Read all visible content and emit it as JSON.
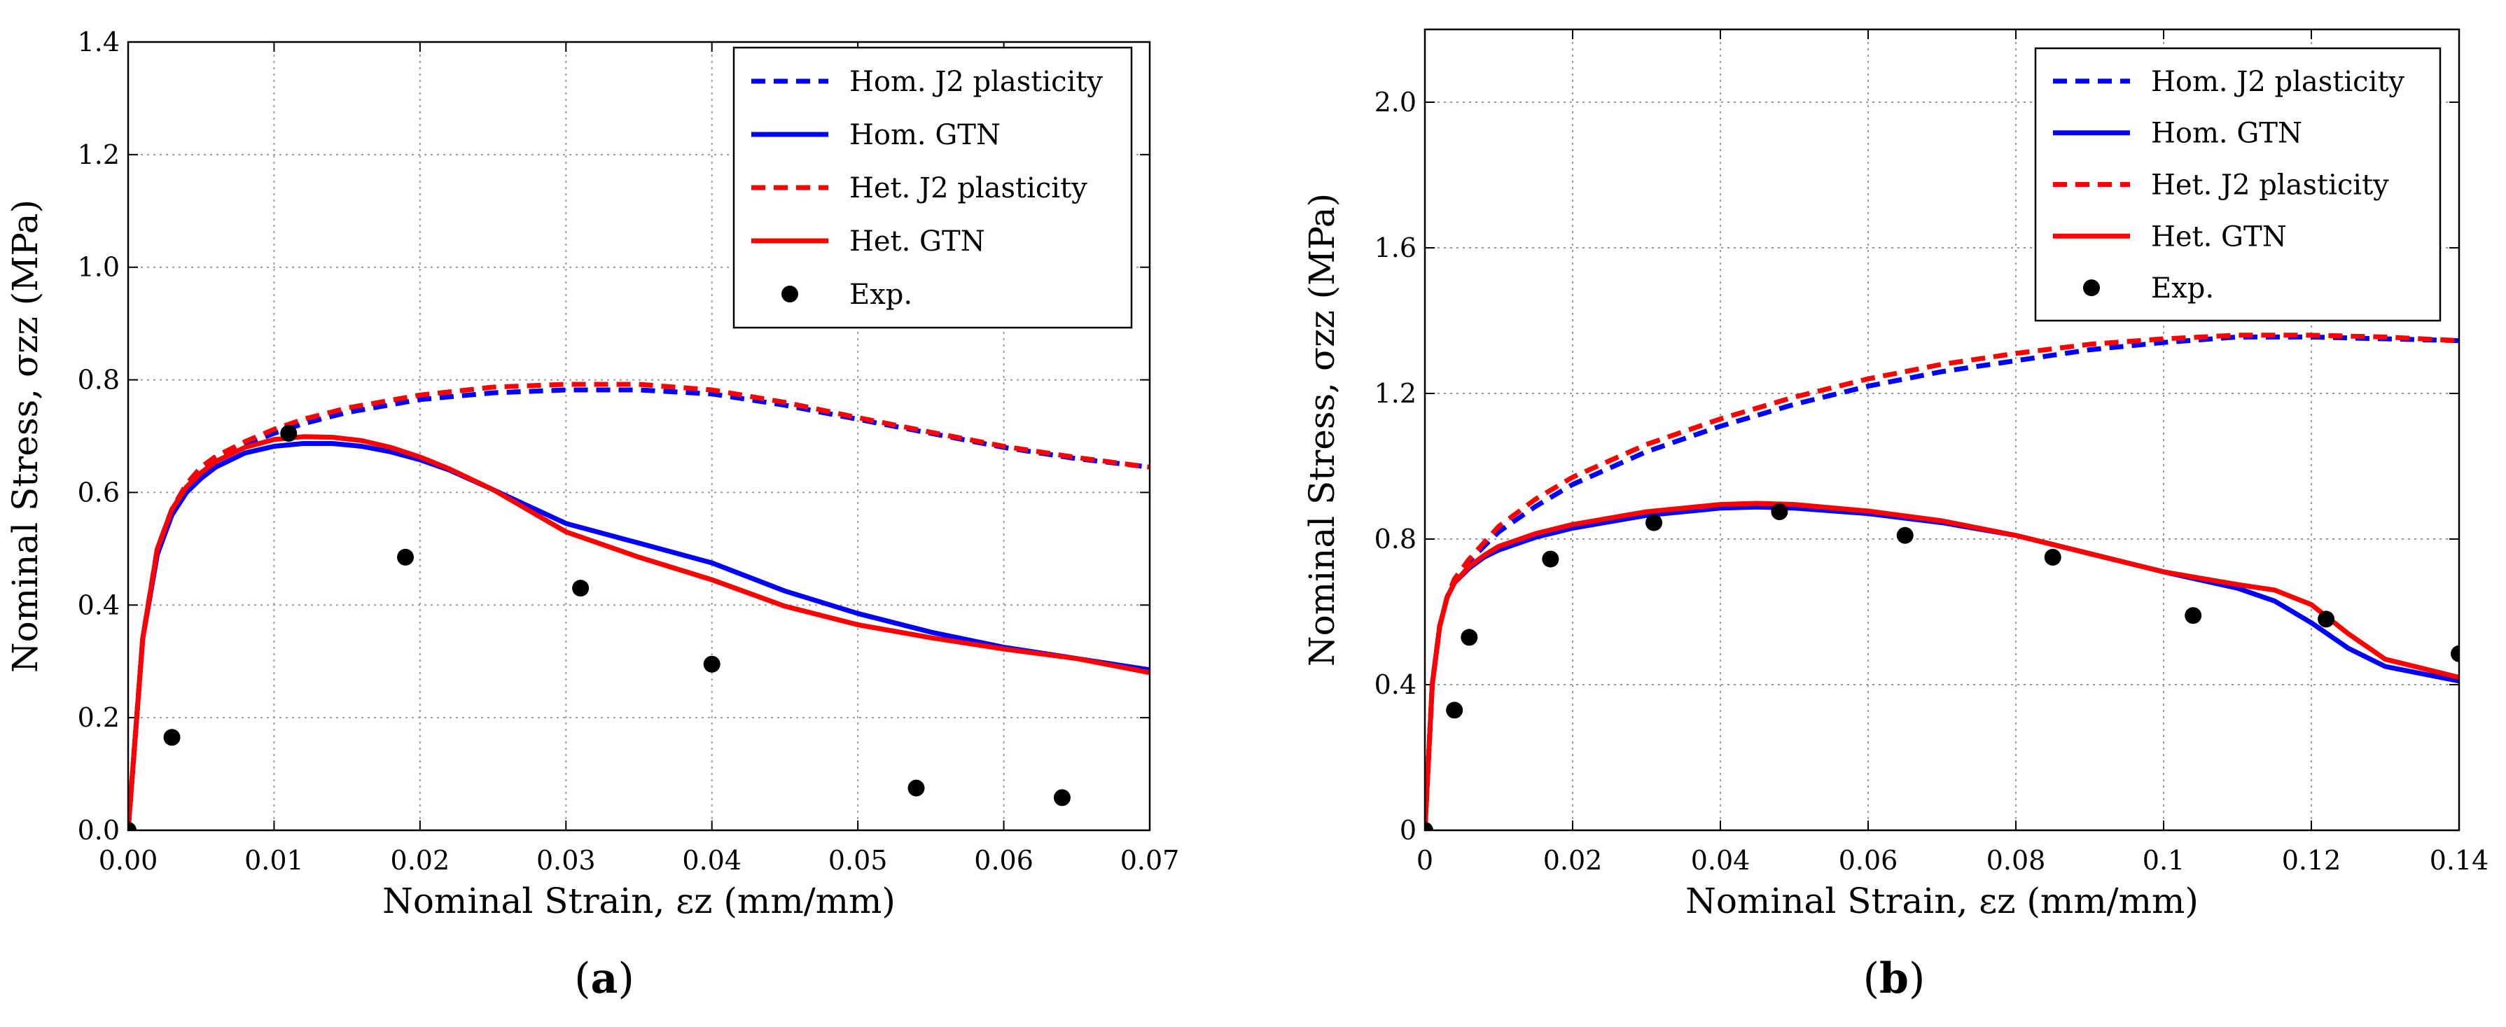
{
  "chart_data": [
    {
      "type": "line",
      "caption": "a",
      "xlabel": "Nominal Strain, εz (mm/mm)",
      "ylabel": "Nominal Stress, σzz (MPa)",
      "xlim": [
        0,
        0.07
      ],
      "ylim": [
        0,
        1.4
      ],
      "xticks": [
        0,
        0.01,
        0.02,
        0.03,
        0.04,
        0.05,
        0.06,
        0.07
      ],
      "xtick_labels": [
        "0.00",
        "0.01",
        "0.02",
        "0.03",
        "0.04",
        "0.05",
        "0.06",
        "0.07"
      ],
      "yticks": [
        0,
        0.2,
        0.4,
        0.6,
        0.8,
        1.0,
        1.2,
        1.4
      ],
      "ytick_labels": [
        "0.0",
        "0.2",
        "0.4",
        "0.6",
        "0.8",
        "1.0",
        "1.2",
        "1.4"
      ],
      "grid": true,
      "legend_position": "top-right",
      "series": [
        {
          "name": "Hom. J2 plasticity",
          "color": "#0000ff",
          "style": "dashed",
          "x": [
            0,
            0.001,
            0.002,
            0.003,
            0.004,
            0.005,
            0.006,
            0.008,
            0.01,
            0.012,
            0.015,
            0.02,
            0.025,
            0.03,
            0.035,
            0.04,
            0.045,
            0.05,
            0.055,
            0.06,
            0.065,
            0.07
          ],
          "y": [
            0,
            0.34,
            0.5,
            0.57,
            0.615,
            0.645,
            0.662,
            0.685,
            0.705,
            0.722,
            0.742,
            0.765,
            0.777,
            0.782,
            0.782,
            0.775,
            0.755,
            0.73,
            0.705,
            0.68,
            0.66,
            0.645
          ]
        },
        {
          "name": "Hom. GTN",
          "color": "#0000ff",
          "style": "solid",
          "x": [
            0,
            0.001,
            0.002,
            0.003,
            0.004,
            0.005,
            0.006,
            0.008,
            0.01,
            0.012,
            0.014,
            0.016,
            0.018,
            0.02,
            0.022,
            0.025,
            0.03,
            0.035,
            0.04,
            0.045,
            0.05,
            0.055,
            0.06,
            0.065,
            0.07
          ],
          "y": [
            0,
            0.34,
            0.49,
            0.56,
            0.6,
            0.625,
            0.645,
            0.67,
            0.682,
            0.687,
            0.687,
            0.682,
            0.672,
            0.658,
            0.64,
            0.605,
            0.545,
            0.51,
            0.475,
            0.425,
            0.385,
            0.352,
            0.325,
            0.305,
            0.285
          ]
        },
        {
          "name": "Het. J2 plasticity",
          "color": "#ff0000",
          "style": "dashed",
          "x": [
            0,
            0.001,
            0.002,
            0.003,
            0.004,
            0.005,
            0.006,
            0.008,
            0.01,
            0.012,
            0.015,
            0.02,
            0.025,
            0.03,
            0.035,
            0.04,
            0.045,
            0.05,
            0.055,
            0.06,
            0.065,
            0.07
          ],
          "y": [
            0,
            0.34,
            0.5,
            0.57,
            0.615,
            0.645,
            0.664,
            0.69,
            0.712,
            0.73,
            0.75,
            0.773,
            0.787,
            0.792,
            0.792,
            0.782,
            0.76,
            0.733,
            0.707,
            0.682,
            0.662,
            0.645
          ]
        },
        {
          "name": "Het. GTN",
          "color": "#ff0000",
          "style": "solid",
          "x": [
            0,
            0.001,
            0.002,
            0.003,
            0.004,
            0.005,
            0.006,
            0.008,
            0.01,
            0.012,
            0.014,
            0.016,
            0.018,
            0.02,
            0.022,
            0.025,
            0.03,
            0.035,
            0.04,
            0.045,
            0.05,
            0.055,
            0.06,
            0.065,
            0.07
          ],
          "y": [
            0,
            0.34,
            0.5,
            0.57,
            0.61,
            0.635,
            0.655,
            0.68,
            0.694,
            0.699,
            0.698,
            0.692,
            0.68,
            0.663,
            0.642,
            0.605,
            0.53,
            0.485,
            0.445,
            0.398,
            0.365,
            0.342,
            0.322,
            0.305,
            0.28
          ]
        },
        {
          "name": "Exp.",
          "color": "#000000",
          "style": "markers",
          "x": [
            0,
            0.003,
            0.011,
            0.019,
            0.031,
            0.04,
            0.054,
            0.064
          ],
          "y": [
            0,
            0.165,
            0.705,
            0.485,
            0.43,
            0.295,
            0.075,
            0.058
          ]
        }
      ]
    },
    {
      "type": "line",
      "caption": "b",
      "xlabel": "Nominal Strain, εz (mm/mm)",
      "ylabel": "Nominal Stress, σzz (MPa)",
      "xlim": [
        0,
        0.14
      ],
      "ylim": [
        0,
        2.2
      ],
      "xticks": [
        0,
        0.02,
        0.04,
        0.06,
        0.08,
        0.1,
        0.12,
        0.14
      ],
      "xtick_labels": [
        "0",
        "0.02",
        "0.04",
        "0.06",
        "0.08",
        "0.1",
        "0.12",
        "0.14"
      ],
      "yticks": [
        0,
        0.4,
        0.8,
        1.2,
        1.6,
        2.0
      ],
      "ytick_labels": [
        "0",
        "0.4",
        "0.8",
        "1.2",
        "1.6",
        "2.0"
      ],
      "grid": true,
      "legend_position": "top-right",
      "series": [
        {
          "name": "Hom. J2 plasticity",
          "color": "#0000ff",
          "style": "dashed",
          "x": [
            0,
            0.001,
            0.002,
            0.003,
            0.004,
            0.006,
            0.008,
            0.01,
            0.015,
            0.02,
            0.03,
            0.04,
            0.05,
            0.06,
            0.07,
            0.08,
            0.09,
            0.1,
            0.11,
            0.12,
            0.13,
            0.14
          ],
          "y": [
            0,
            0.4,
            0.56,
            0.64,
            0.69,
            0.74,
            0.78,
            0.82,
            0.89,
            0.95,
            1.04,
            1.11,
            1.17,
            1.22,
            1.26,
            1.29,
            1.32,
            1.34,
            1.355,
            1.355,
            1.35,
            1.345
          ]
        },
        {
          "name": "Hom. GTN",
          "color": "#0000ff",
          "style": "solid",
          "x": [
            0,
            0.001,
            0.002,
            0.003,
            0.004,
            0.006,
            0.008,
            0.01,
            0.015,
            0.02,
            0.03,
            0.04,
            0.045,
            0.05,
            0.06,
            0.07,
            0.08,
            0.09,
            0.1,
            0.11,
            0.115,
            0.12,
            0.125,
            0.13,
            0.14
          ],
          "y": [
            0,
            0.4,
            0.56,
            0.64,
            0.68,
            0.72,
            0.75,
            0.77,
            0.805,
            0.83,
            0.865,
            0.885,
            0.888,
            0.885,
            0.87,
            0.845,
            0.81,
            0.76,
            0.71,
            0.665,
            0.63,
            0.57,
            0.5,
            0.45,
            0.41
          ]
        },
        {
          "name": "Het. J2 plasticity",
          "color": "#ff0000",
          "style": "dashed",
          "x": [
            0,
            0.001,
            0.002,
            0.003,
            0.004,
            0.006,
            0.008,
            0.01,
            0.015,
            0.02,
            0.03,
            0.04,
            0.05,
            0.06,
            0.07,
            0.08,
            0.09,
            0.1,
            0.11,
            0.12,
            0.13,
            0.14
          ],
          "y": [
            0,
            0.4,
            0.56,
            0.64,
            0.69,
            0.745,
            0.79,
            0.835,
            0.91,
            0.97,
            1.06,
            1.13,
            1.19,
            1.24,
            1.28,
            1.31,
            1.335,
            1.35,
            1.36,
            1.36,
            1.355,
            1.345
          ]
        },
        {
          "name": "Het. GTN",
          "color": "#ff0000",
          "style": "solid",
          "x": [
            0,
            0.001,
            0.002,
            0.003,
            0.004,
            0.006,
            0.008,
            0.01,
            0.015,
            0.02,
            0.03,
            0.04,
            0.045,
            0.05,
            0.06,
            0.07,
            0.08,
            0.09,
            0.1,
            0.11,
            0.115,
            0.12,
            0.125,
            0.13,
            0.14
          ],
          "y": [
            0,
            0.4,
            0.56,
            0.64,
            0.68,
            0.725,
            0.755,
            0.78,
            0.815,
            0.84,
            0.875,
            0.895,
            0.898,
            0.895,
            0.877,
            0.85,
            0.81,
            0.76,
            0.71,
            0.675,
            0.66,
            0.62,
            0.54,
            0.47,
            0.42
          ]
        },
        {
          "name": "Exp.",
          "color": "#000000",
          "style": "markers",
          "x": [
            0,
            0.004,
            0.006,
            0.017,
            0.031,
            0.048,
            0.065,
            0.085,
            0.104,
            0.122,
            0.14
          ],
          "y": [
            0,
            0.33,
            0.53,
            0.745,
            0.845,
            0.875,
            0.81,
            0.75,
            0.59,
            0.58,
            0.485
          ]
        }
      ]
    }
  ]
}
